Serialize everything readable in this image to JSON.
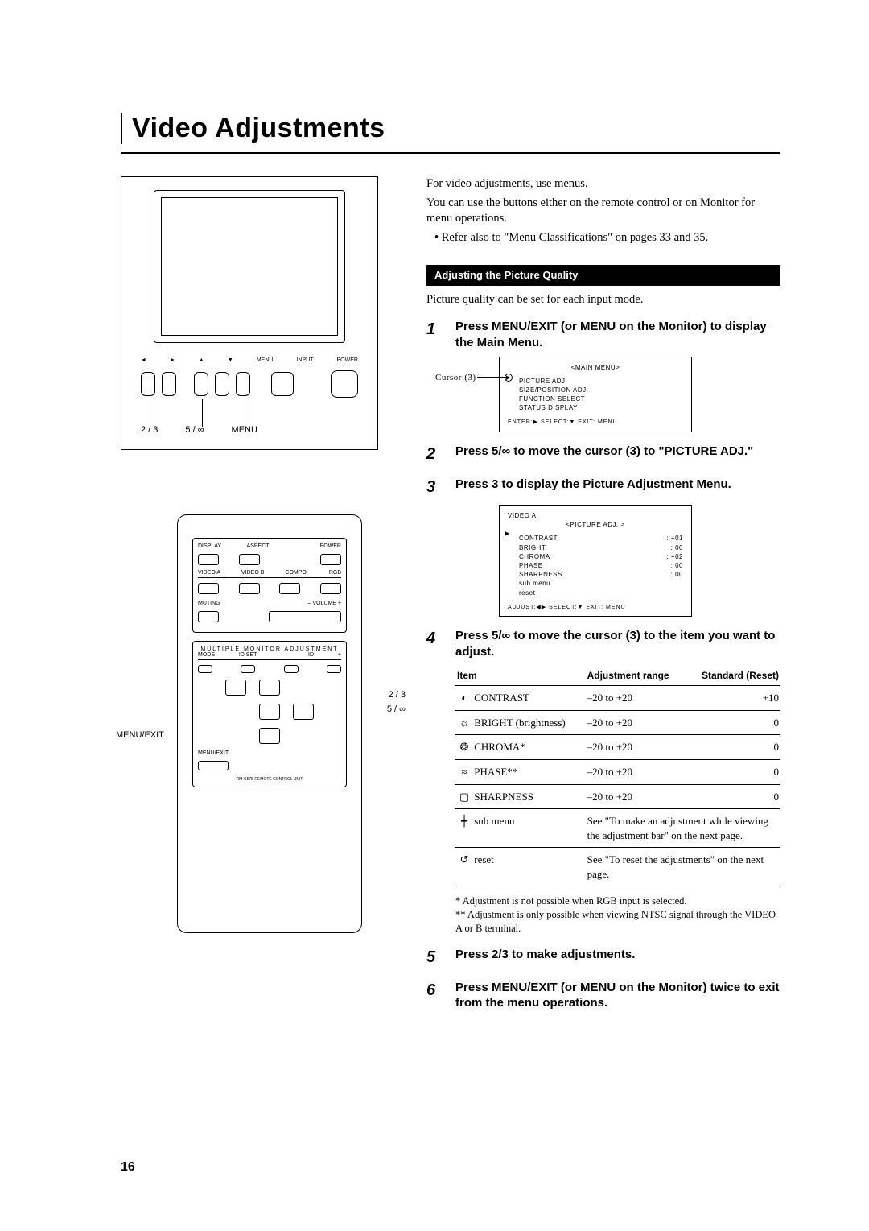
{
  "title": "Video Adjustments",
  "page_number": "16",
  "intro": {
    "line1": "For video adjustments, use menus.",
    "line2": "You can use the buttons either on the remote control or on Monitor for menu operations.",
    "bullet": "• Refer also to \"Menu Classifications\" on pages 33 and 35."
  },
  "section_header": "Adjusting the Picture Quality",
  "section_sub": "Picture quality can be set for each input mode.",
  "steps": {
    "s1": "Press MENU/EXIT (or MENU on the Monitor) to display the Main Menu.",
    "s2": "Press 5/∞ to move the cursor (3) to \"PICTURE ADJ.\"",
    "s3": "Press 3 to display the Picture Adjustment Menu.",
    "s4": "Press 5/∞ to move the cursor (3) to the item you want to adjust.",
    "s5": "Press 2/3 to make adjustments.",
    "s6": "Press MENU/EXIT (or MENU on the Monitor) twice to exit from the menu operations."
  },
  "osd1": {
    "cursor_label": "Cursor (3)",
    "title": "<MAIN MENU>",
    "items": [
      "PICTURE  ADJ.",
      "SIZE/POSITION  ADJ.",
      "FUNCTION SELECT",
      "STATUS DISPLAY"
    ],
    "foot": "ENTER:▶  SELECT:▼  EXIT: MENU"
  },
  "osd2": {
    "head": "VIDEO A",
    "title": "<PICTURE ADJ. >",
    "rows": [
      {
        "k": "CONTRAST",
        "v": ": +01"
      },
      {
        "k": "BRIGHT",
        "v": ":  00"
      },
      {
        "k": "CHROMA",
        "v": ": +02"
      },
      {
        "k": "PHASE",
        "v": ":  00"
      },
      {
        "k": "SHARPNESS",
        "v": ":  00"
      },
      {
        "k": "sub menu",
        "v": ""
      },
      {
        "k": "reset",
        "v": ""
      }
    ],
    "foot": "ADJUST:◀▶ SELECT:▼  EXIT: MENU"
  },
  "table": {
    "headers": [
      "Item",
      "Adjustment range",
      "Standard (Reset)"
    ],
    "rows": [
      {
        "icon": "◐",
        "item": "CONTRAST",
        "range": "–20 to +20",
        "reset": "+10"
      },
      {
        "icon": "☼",
        "item": "BRIGHT (brightness)",
        "range": "–20 to +20",
        "reset": "0"
      },
      {
        "icon": "❂",
        "item": "CHROMA*",
        "range": "–20 to +20",
        "reset": "0"
      },
      {
        "icon": "≈",
        "item": "PHASE**",
        "range": "–20 to +20",
        "reset": "0"
      },
      {
        "icon": "▢",
        "item": "SHARPNESS",
        "range": "–20 to +20",
        "reset": "0"
      },
      {
        "icon": "┿",
        "item": "sub menu",
        "range": "See \"To make an adjustment while viewing the adjustment bar\" on the next page.",
        "reset": ""
      },
      {
        "icon": "↺",
        "item": "reset",
        "range": "See \"To reset the adjustments\" on the next page.",
        "reset": ""
      }
    ]
  },
  "footnotes": {
    "f1": "  * Adjustment is not possible when RGB input is selected.",
    "f2": "** Adjustment is only possible when viewing NTSC signal through the VIDEO A or B terminal."
  },
  "monitor": {
    "top_labels": [
      "◄",
      "►",
      "▲",
      "▼",
      "MENU",
      "INPUT",
      "POWER"
    ],
    "bottom_labels": [
      "2 / 3",
      "5 / ∞",
      "MENU"
    ]
  },
  "remote": {
    "row1": [
      "DISPLAY",
      "ASPECT",
      "",
      "POWER"
    ],
    "row2": [
      "VIDEO A",
      "VIDEO B",
      "COMPO.",
      "RGB"
    ],
    "row3l": "MUTING",
    "row3r": "– VOLUME +",
    "sect": "MULTIPLE   MONITOR   ADJUSTMENT",
    "row4": [
      "MODE",
      "ID SET",
      "–",
      "ID",
      "+"
    ],
    "menu_exit": "MENU/EXIT",
    "footer": "RM-C575 REMOTE CONTROL UNIT",
    "side_left": "MENU/EXIT",
    "side_right_a": "2 / 3",
    "side_right_b": "5 / ∞"
  }
}
